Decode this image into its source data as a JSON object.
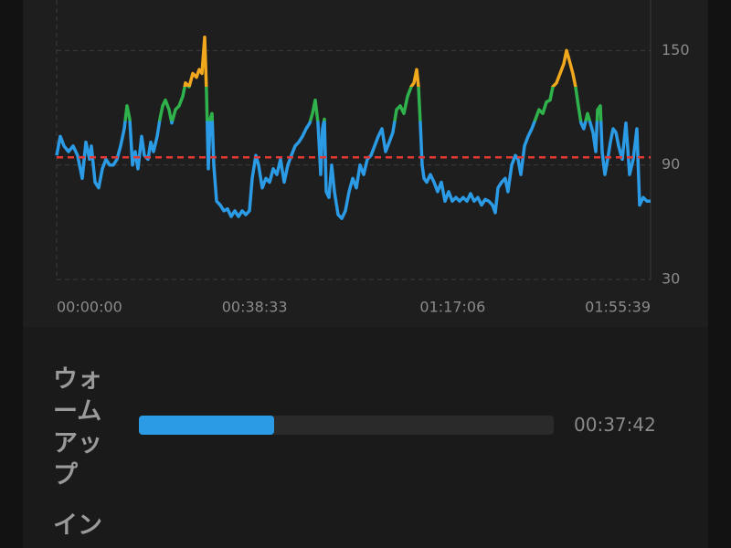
{
  "chart_data": {
    "type": "line",
    "x": [
      0,
      43,
      85,
      139,
      192,
      245,
      299,
      342,
      384,
      406,
      448,
      491,
      534,
      576,
      619,
      662,
      705,
      747,
      790,
      822,
      854,
      886,
      918,
      950,
      993,
      1025,
      1068,
      1100,
      1132,
      1174,
      1206,
      1238,
      1270,
      1313,
      1345,
      1388,
      1430,
      1473,
      1505,
      1548,
      1591,
      1633,
      1665,
      1697,
      1729,
      1751,
      1772,
      1793,
      1815,
      1836,
      1868,
      1911,
      1954,
      1996,
      2039,
      2082,
      2124,
      2167,
      2210,
      2252,
      2284,
      2327,
      2359,
      2402,
      2445,
      2487,
      2530,
      2573,
      2615,
      2658,
      2701,
      2743,
      2786,
      2829,
      2872,
      2914,
      2957,
      2989,
      3021,
      3053,
      3085,
      3106,
      3128,
      3149,
      3181,
      3213,
      3245,
      3288,
      3331,
      3373,
      3416,
      3459,
      3501,
      3544,
      3587,
      3630,
      3672,
      3715,
      3758,
      3800,
      3843,
      3886,
      3928,
      3971,
      4014,
      4057,
      4099,
      4142,
      4174,
      4206,
      4227,
      4249,
      4270,
      4291,
      4323,
      4366,
      4409,
      4451,
      4494,
      4537,
      4580,
      4622,
      4665,
      4708,
      4750,
      4793,
      4836,
      4878,
      4921,
      4964,
      5007,
      5049,
      5092,
      5124,
      5156,
      5199,
      5241,
      5273,
      5316,
      5359,
      5391,
      5423,
      5466,
      5508,
      5551,
      5594,
      5636,
      5679,
      5722,
      5765,
      5797,
      5839,
      5882,
      5925,
      5957,
      5989,
      6031,
      6063,
      6095,
      6127,
      6159,
      6202,
      6234,
      6266,
      6298,
      6320,
      6352,
      6373,
      6405,
      6437,
      6469,
      6501,
      6534,
      6565,
      6608,
      6651,
      6693,
      6736,
      6779,
      6811,
      6853,
      6896,
      6939
    ],
    "values": [
      95,
      105,
      100,
      97,
      100,
      95,
      83,
      102,
      93,
      100,
      81,
      78,
      88,
      93,
      90,
      90,
      93,
      100,
      109,
      121,
      114,
      90,
      97,
      88,
      105,
      95,
      93,
      102,
      97,
      105,
      114,
      121,
      124,
      119,
      112,
      119,
      121,
      126,
      133,
      131,
      138,
      136,
      140,
      138,
      157,
      128,
      88,
      114,
      117,
      90,
      71,
      69,
      66,
      67,
      63,
      66,
      63,
      66,
      64,
      66,
      83,
      95,
      90,
      78,
      83,
      81,
      88,
      85,
      93,
      81,
      90,
      95,
      100,
      102,
      105,
      109,
      112,
      117,
      124,
      112,
      85,
      109,
      114,
      76,
      73,
      90,
      76,
      64,
      62,
      66,
      76,
      83,
      78,
      90,
      85,
      93,
      95,
      100,
      105,
      109,
      97,
      102,
      107,
      119,
      121,
      117,
      126,
      131,
      133,
      140,
      131,
      112,
      90,
      83,
      81,
      85,
      81,
      76,
      81,
      71,
      76,
      71,
      73,
      71,
      73,
      71,
      75,
      71,
      73,
      69,
      72,
      71,
      69,
      65,
      78,
      81,
      83,
      76,
      90,
      95,
      93,
      85,
      100,
      105,
      109,
      114,
      119,
      117,
      123,
      124,
      131,
      133,
      138,
      143,
      150,
      145,
      138,
      131,
      121,
      112,
      109,
      117,
      112,
      107,
      97,
      119,
      121,
      97,
      85,
      93,
      102,
      109,
      107,
      100,
      93,
      112,
      85,
      93,
      109,
      69,
      73,
      71,
      71
    ],
    "zone_thresholds": [
      113,
      131
    ],
    "zone_colors": [
      "#2b9be6",
      "#2fb24c",
      "#f2a81d"
    ],
    "reference_line": 94,
    "reference_color": "#e53935",
    "xlim": [
      0,
      6939
    ],
    "xticks": [
      {
        "value": 0,
        "label": "00:00:00"
      },
      {
        "value": 2313,
        "label": "00:38:33"
      },
      {
        "value": 4626,
        "label": "01:17:06"
      },
      {
        "value": 6939,
        "label": "01:55:39"
      }
    ],
    "ylim": [
      30,
      176
    ],
    "yticks": [
      30,
      90,
      150
    ],
    "grid": true
  },
  "zones": [
    {
      "label": "ウォームアップ",
      "value": 2262,
      "time": "00:37:42",
      "color": "#2b9be6"
    },
    {
      "label": "イン"
    }
  ]
}
